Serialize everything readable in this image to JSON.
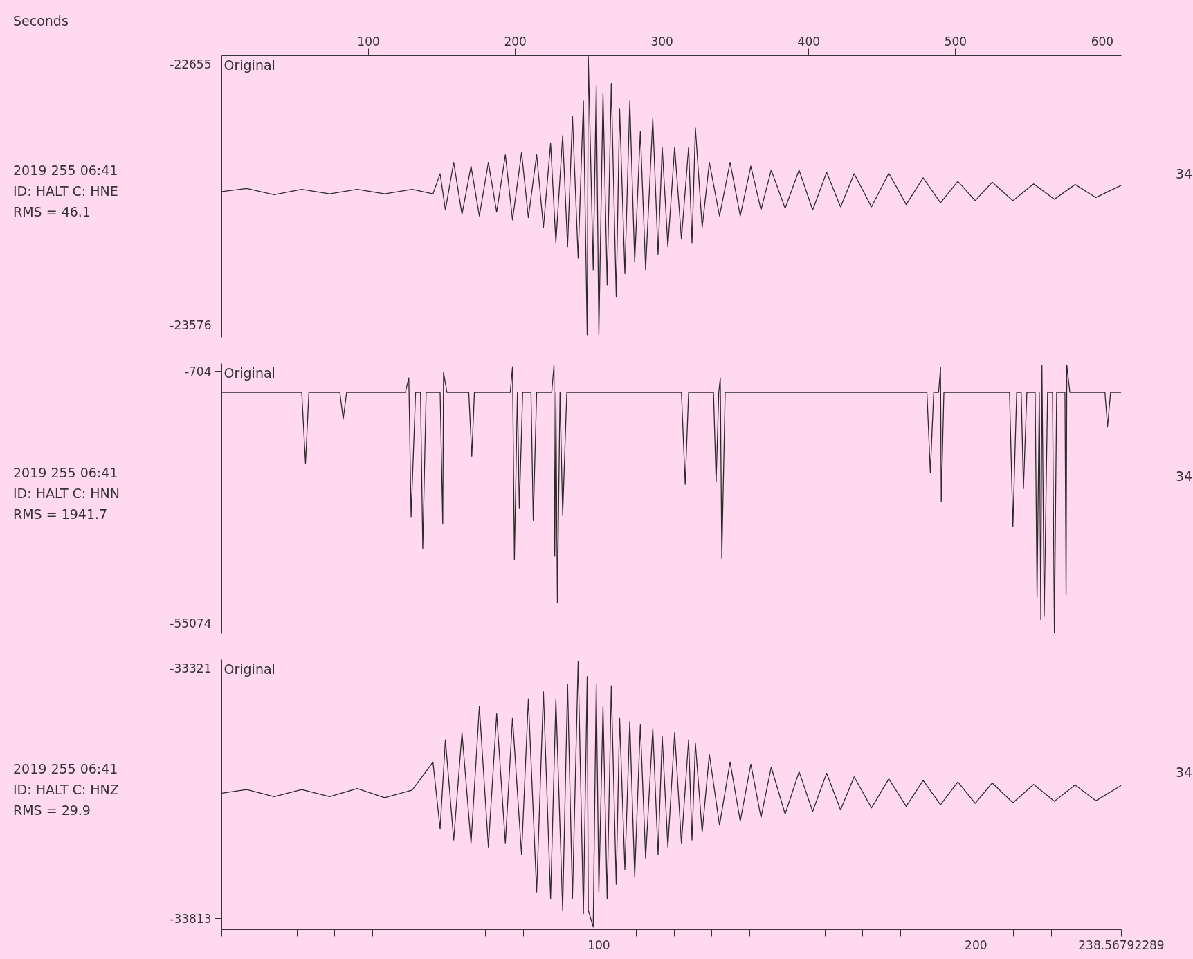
{
  "chart_data": [
    {
      "type": "line",
      "title": "Original",
      "x2label": "Seconds",
      "x2lim": [
        0,
        613
      ],
      "x2ticks": [
        100,
        200,
        300,
        400,
        500,
        600
      ],
      "annotations": [
        "2019 255 06:41",
        "ID: HALT C: HNE",
        "RMS = 46.1",
        "34"
      ],
      "xlim": [
        0,
        238.56792289
      ],
      "ylim": [
        -23620,
        -22625
      ],
      "yticks": [
        -23576,
        -22655
      ],
      "tick_labels": "y",
      "x": [
        0,
        6.6,
        13.9,
        21.2,
        28.6,
        35.9,
        43.2,
        50.5,
        56.0,
        57.9,
        59.3,
        61.5,
        63.7,
        66.1,
        68.3,
        70.7,
        72.9,
        75.2,
        77.1,
        79.5,
        81.3,
        83.5,
        85.3,
        87.2,
        88.6,
        90.4,
        91.7,
        93.0,
        94.5,
        95.9,
        96.9,
        97.2,
        98.5,
        99.3,
        100.0,
        101.1,
        102.2,
        103.3,
        104.6,
        105.5,
        106.9,
        108.2,
        109.5,
        111.0,
        112.4,
        114.3,
        115.7,
        116.8,
        118.3,
        120.1,
        121.9,
        123.8,
        124.7,
        125.6,
        127.4,
        129.3,
        132.0,
        134.8,
        137.5,
        140.3,
        143.0,
        145.7,
        149.4,
        153.1,
        156.7,
        160.4,
        164.1,
        167.7,
        172.3,
        176.9,
        181.5,
        186.0,
        190.6,
        195.2,
        199.8,
        204.3,
        209.8,
        215.3,
        220.8,
        226.3,
        231.8,
        238.5
      ],
      "series": [
        {
          "color": "#2b2b2b",
          "values": [
            -23105,
            -23094,
            -23116,
            -23097,
            -23113,
            -23097,
            -23113,
            -23097,
            -23113,
            -23042,
            -23170,
            -23002,
            -23186,
            -23015,
            -23191,
            -23002,
            -23178,
            -22975,
            -23205,
            -22967,
            -23197,
            -22975,
            -23232,
            -22934,
            -23286,
            -22907,
            -23300,
            -22839,
            -23340,
            -22785,
            -23611,
            -22628,
            -23381,
            -22731,
            -23611,
            -22758,
            -23435,
            -22723,
            -23476,
            -22812,
            -23395,
            -22785,
            -23354,
            -22893,
            -23381,
            -22847,
            -23327,
            -22948,
            -23300,
            -22948,
            -23273,
            -22948,
            -23286,
            -22880,
            -23232,
            -23002,
            -23191,
            -23002,
            -23191,
            -23015,
            -23170,
            -23029,
            -23164,
            -23029,
            -23170,
            -23037,
            -23159,
            -23042,
            -23159,
            -23040,
            -23151,
            -23056,
            -23145,
            -23069,
            -23137,
            -23072,
            -23137,
            -23078,
            -23132,
            -23080,
            -23126,
            -23083
          ]
        }
      ]
    },
    {
      "type": "line",
      "title": "Original",
      "annotations": [
        "2019 255 06:41",
        "ID: HALT C: HNN",
        "RMS = 1941.7",
        "34"
      ],
      "xlim": [
        0,
        238.56792289
      ],
      "ylim": [
        -57300,
        1000
      ],
      "yticks": [
        -55074,
        -704
      ],
      "tick_labels": "y",
      "x": [
        0,
        21.2,
        22.2,
        23.1,
        31.3,
        32.2,
        33.1,
        48.7,
        49.6,
        50.2,
        51.4,
        52.7,
        53.3,
        54.2,
        57.9,
        58.6,
        58.8,
        59.7,
        65.5,
        66.3,
        67.0,
        76.5,
        77.1,
        77.6,
        78.4,
        78.9,
        79.8,
        82.0,
        82.6,
        83.5,
        87.5,
        88.1,
        88.3,
        88.6,
        89.0,
        89.7,
        90.4,
        91.5,
        121.9,
        122.9,
        123.8,
        130.4,
        131.1,
        131.8,
        132.2,
        132.6,
        133.5,
        187.0,
        187.9,
        188.8,
        190.1,
        190.6,
        190.8,
        191.5,
        208.9,
        209.8,
        210.8,
        212.0,
        212.6,
        213.5,
        215.7,
        216.2,
        216.8,
        217.2,
        217.5,
        218.1,
        219.0,
        220.3,
        220.8,
        221.4,
        223.6,
        223.9,
        224.1,
        224.9,
        234.2,
        234.9,
        235.7,
        238.5
      ],
      "series": [
        {
          "color": "#2b2b2b",
          "values": [
            -5200,
            -5200,
            -20600,
            -5200,
            -5200,
            -11000,
            -5200,
            -5200,
            -2100,
            -32100,
            -5200,
            -5200,
            -39000,
            -5200,
            -5200,
            -33700,
            -900,
            -5200,
            -5200,
            -19000,
            -5200,
            -5200,
            300,
            -41400,
            -5200,
            -30200,
            -5200,
            -5200,
            -32900,
            -5200,
            -5200,
            700,
            -40600,
            -5200,
            -50600,
            -5200,
            -31800,
            -5200,
            -5200,
            -25100,
            -5200,
            -5200,
            -24600,
            -5200,
            -2100,
            -41100,
            -5200,
            -5200,
            -22500,
            -5200,
            -5200,
            100,
            -28900,
            -5200,
            -5200,
            -34200,
            -5200,
            -5200,
            -26000,
            -5200,
            -5200,
            -49500,
            -5200,
            -54300,
            600,
            -53500,
            -5200,
            -5200,
            -57200,
            -5200,
            -5200,
            -49000,
            700,
            -5200,
            -5200,
            -12600,
            -5200,
            -5200
          ]
        }
      ]
    },
    {
      "type": "line",
      "title": "Original",
      "annotations": [
        "2019 255 06:41",
        "ID: HALT C: HNZ",
        "RMS = 29.9",
        "34"
      ],
      "xlim": [
        0,
        238.56792289
      ],
      "ylim": [
        -33835,
        -33305
      ],
      "yticks": [
        -33813,
        -33321
      ],
      "xticks": [
        {
          "value": 0,
          "label": null
        },
        {
          "value": 10,
          "label": null
        },
        {
          "value": 20,
          "label": null
        },
        {
          "value": 30,
          "label": null
        },
        {
          "value": 40,
          "label": null
        },
        {
          "value": 50,
          "label": null
        },
        {
          "value": 60,
          "label": null
        },
        {
          "value": 70,
          "label": null
        },
        {
          "value": 80,
          "label": null
        },
        {
          "value": 90,
          "label": null
        },
        100,
        {
          "value": 110,
          "label": null
        },
        {
          "value": 120,
          "label": null
        },
        {
          "value": 130,
          "label": null
        },
        {
          "value": 140,
          "label": null
        },
        {
          "value": 150,
          "label": null
        },
        {
          "value": 160,
          "label": null
        },
        {
          "value": 170,
          "label": null
        },
        {
          "value": 180,
          "label": null
        },
        {
          "value": 190,
          "label": null
        },
        200,
        {
          "value": 210,
          "label": null
        },
        {
          "value": 220,
          "label": null
        },
        {
          "value": 230,
          "label": null
        },
        238.56792289
      ],
      "x": [
        0,
        6.6,
        13.9,
        21.2,
        28.6,
        35.9,
        43.2,
        50.5,
        56.0,
        57.9,
        59.3,
        61.5,
        63.7,
        66.1,
        68.3,
        70.7,
        72.9,
        75.2,
        77.1,
        79.5,
        81.3,
        83.5,
        85.3,
        87.2,
        88.6,
        90.4,
        91.7,
        93.0,
        94.5,
        95.9,
        96.9,
        97.2,
        98.5,
        99.3,
        100.0,
        101.1,
        102.2,
        103.3,
        104.6,
        105.5,
        106.9,
        108.2,
        109.5,
        111.0,
        112.4,
        114.3,
        115.7,
        116.8,
        118.3,
        120.1,
        121.9,
        123.8,
        124.7,
        125.6,
        127.4,
        129.3,
        132.0,
        134.8,
        137.5,
        140.3,
        143.0,
        145.7,
        149.4,
        153.1,
        156.7,
        160.4,
        164.1,
        167.7,
        172.3,
        176.9,
        181.5,
        186.0,
        190.6,
        195.2,
        199.8,
        204.3,
        209.8,
        215.3,
        220.8,
        226.3,
        231.8,
        238.5
      ],
      "series": [
        {
          "color": "#2b2b2b",
          "values": [
            -33567,
            -33560,
            -33574,
            -33560,
            -33574,
            -33558,
            -33576,
            -33561,
            -33506,
            -33637,
            -33462,
            -33659,
            -33448,
            -33666,
            -33397,
            -33673,
            -33411,
            -33666,
            -33419,
            -33688,
            -33382,
            -33761,
            -33368,
            -33775,
            -33382,
            -33797,
            -33353,
            -33775,
            -33309,
            -33804,
            -33338,
            -33797,
            -33830,
            -33353,
            -33761,
            -33397,
            -33775,
            -33356,
            -33746,
            -33419,
            -33717,
            -33426,
            -33731,
            -33433,
            -33695,
            -33440,
            -33688,
            -33455,
            -33673,
            -33448,
            -33666,
            -33462,
            -33659,
            -33469,
            -33644,
            -33491,
            -33630,
            -33506,
            -33622,
            -33510,
            -33615,
            -33516,
            -33608,
            -33525,
            -33603,
            -33528,
            -33600,
            -33535,
            -33596,
            -33539,
            -33593,
            -33542,
            -33590,
            -33545,
            -33587,
            -33547,
            -33586,
            -33550,
            -33583,
            -33551,
            -33582,
            -33552
          ]
        }
      ]
    }
  ]
}
